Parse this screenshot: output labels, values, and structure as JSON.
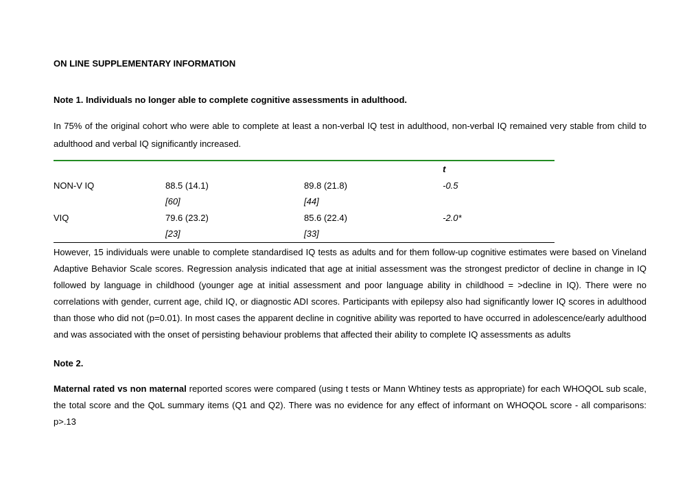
{
  "section_title": "ON LINE SUPPLEMENTARY INFORMATION",
  "note1": {
    "heading": "Note 1. Individuals no longer able to complete cognitive assessments in adulthood.",
    "para1": "In 75% of the original cohort who were able to complete at least a non-verbal IQ test in adulthood, non-verbal IQ remained very stable from child to adulthood and verbal IQ significantly increased.",
    "para2": "However, 15 individuals were unable to complete standardised IQ tests as adults and for them follow-up cognitive estimates were based on Vineland Adaptive Behavior Scale scores. Regression analysis indicated that age at initial assessment was the strongest predictor of decline in change in IQ followed by language in childhood (younger age at initial assessment and poor language ability in childhood = >decline in IQ). There were no correlations with gender, current age, child IQ, or diagnostic ADI scores. Participants with epilepsy also had significantly lower IQ scores in adulthood than those who did not (p=0.01).  In most cases the apparent decline in cognitive ability was reported to have occurred in adolescence/early adulthood and was associated with the onset of persisting behaviour problems that affected their ability to complete IQ assessments as adults"
  },
  "table": {
    "colors": {
      "top_border": "#228b22",
      "bottom_border": "#000000",
      "text": "#000000"
    },
    "header": {
      "t_col": "t"
    },
    "rows": [
      {
        "label": "NON-V IQ",
        "v1": "88.5 (14.1)",
        "v2": "89.8 (21.8)",
        "t": "-0.5",
        "n1": "[60]",
        "n2": "[44]"
      },
      {
        "label": "VIQ",
        "v1": "79.6 (23.2)",
        "v2": "85.6 (22.4)",
        "t": "-2.0*",
        "n1": "[23]",
        "n2": "[33]"
      }
    ]
  },
  "note2": {
    "heading": "Note 2.",
    "lead_bold": "Maternal rated vs non maternal",
    "para_rest": " reported scores were compared (using t tests or Mann Whtiney tests as appropriate) for each WHOQOL sub scale, the total score and the QoL summary items (Q1 and Q2). There was no evidence for any effect of informant on WHOQOL score - all comparisons: p>.13"
  }
}
